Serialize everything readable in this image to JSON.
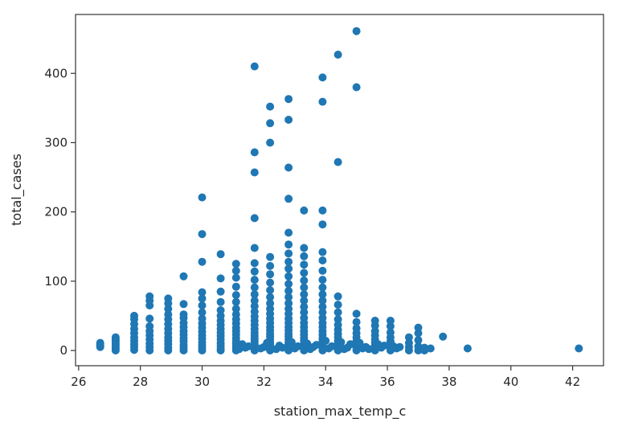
{
  "chart_data": {
    "type": "scatter",
    "xlabel": "station_max_temp_c",
    "ylabel": "total_cases",
    "xlim": [
      25.9,
      43.0
    ],
    "ylim": [
      -22,
      485
    ],
    "grid": false,
    "marker_color": "#1f77b4",
    "xticks": [
      26,
      28,
      30,
      32,
      34,
      36,
      38,
      40,
      42
    ],
    "xtick_labels": [
      "26",
      "28",
      "30",
      "32",
      "34",
      "36",
      "38",
      "40",
      "42"
    ],
    "yticks": [
      0,
      100,
      200,
      300,
      400
    ],
    "ytick_labels": [
      "0",
      "100",
      "200",
      "300",
      "400"
    ],
    "columns": [
      {
        "x": 26.7,
        "y": [
          5,
          7,
          9,
          11
        ]
      },
      {
        "x": 27.2,
        "y": [
          0,
          3,
          5,
          8,
          10,
          13,
          16,
          19
        ]
      },
      {
        "x": 27.8,
        "y": [
          1,
          5,
          9,
          14,
          19,
          25,
          31,
          38,
          45,
          50
        ]
      },
      {
        "x": 28.3,
        "y": [
          0,
          5,
          10,
          16,
          22,
          28,
          35,
          46,
          65,
          72,
          78
        ]
      },
      {
        "x": 28.9,
        "y": [
          0,
          4,
          9,
          14,
          19,
          25,
          31,
          38,
          45,
          52,
          60,
          68,
          75
        ]
      },
      {
        "x": 29.4,
        "y": [
          0,
          4,
          8,
          13,
          18,
          23,
          28,
          34,
          40,
          47,
          52,
          67,
          107
        ]
      },
      {
        "x": 30.0,
        "y": [
          0,
          4,
          8,
          12,
          17,
          22,
          27,
          33,
          39,
          46,
          55,
          65,
          75,
          84,
          128,
          168,
          221
        ]
      },
      {
        "x": 30.6,
        "y": [
          0,
          3,
          7,
          11,
          16,
          21,
          26,
          31,
          37,
          43,
          50,
          58,
          70,
          85,
          104,
          139
        ]
      },
      {
        "x": 31.1,
        "y": [
          0,
          3,
          6,
          10,
          14,
          18,
          23,
          28,
          33,
          39,
          45,
          52,
          60,
          70,
          80,
          92,
          105,
          115,
          125
        ]
      },
      {
        "x": 31.7,
        "y": [
          0,
          3,
          6,
          9,
          13,
          17,
          21,
          26,
          31,
          37,
          43,
          49,
          56,
          64,
          72,
          81,
          91,
          102,
          114,
          126,
          148,
          191,
          257,
          286,
          410
        ]
      },
      {
        "x": 32.2,
        "y": [
          0,
          3,
          6,
          9,
          12,
          16,
          20,
          24,
          29,
          34,
          40,
          46,
          53,
          60,
          68,
          77,
          87,
          98,
          110,
          122,
          135,
          300,
          328,
          352
        ]
      },
      {
        "x": 32.8,
        "y": [
          0,
          3,
          6,
          9,
          12,
          16,
          20,
          24,
          29,
          34,
          40,
          46,
          53,
          60,
          68,
          77,
          86,
          96,
          107,
          118,
          128,
          140,
          153,
          170,
          219,
          264,
          333,
          363
        ]
      },
      {
        "x": 33.3,
        "y": [
          0,
          3,
          6,
          10,
          14,
          18,
          23,
          28,
          34,
          40,
          47,
          55,
          63,
          72,
          81,
          91,
          101,
          112,
          124,
          136,
          148,
          202
        ]
      },
      {
        "x": 33.9,
        "y": [
          0,
          3,
          6,
          10,
          14,
          18,
          23,
          28,
          34,
          40,
          47,
          55,
          63,
          72,
          81,
          91,
          102,
          115,
          130,
          142,
          182,
          202,
          359,
          394
        ]
      },
      {
        "x": 34.4,
        "y": [
          0,
          3,
          6,
          10,
          14,
          19,
          24,
          30,
          37,
          45,
          55,
          66,
          78,
          272,
          427
        ]
      },
      {
        "x": 35.0,
        "y": [
          0,
          3,
          6,
          10,
          14,
          19,
          25,
          32,
          41,
          53,
          380,
          461
        ]
      },
      {
        "x": 35.6,
        "y": [
          0,
          3,
          7,
          11,
          16,
          22,
          28,
          36,
          43
        ]
      },
      {
        "x": 36.1,
        "y": [
          0,
          4,
          8,
          13,
          19,
          26,
          35,
          43
        ]
      },
      {
        "x": 36.7,
        "y": [
          0,
          5,
          11,
          19
        ]
      },
      {
        "x": 37.0,
        "y": [
          0,
          6,
          15,
          25,
          33
        ]
      },
      {
        "x": 37.2,
        "y": [
          0,
          4
        ]
      },
      {
        "x": 37.4,
        "y": [
          3
        ]
      },
      {
        "x": 37.8,
        "y": [
          20
        ]
      },
      {
        "x": 38.6,
        "y": [
          3
        ]
      },
      {
        "x": 42.2,
        "y": [
          3
        ]
      }
    ],
    "scatter_extra": {
      "x": [
        31.2,
        31.4,
        31.5,
        31.9,
        32.0,
        32.4,
        32.5,
        32.6,
        33.0,
        33.1,
        33.5,
        33.6,
        33.7,
        34.1,
        34.2,
        34.6,
        34.7,
        34.8,
        35.2,
        35.3,
        35.4,
        35.8,
        35.9,
        36.3,
        36.4,
        31.3,
        32.1,
        32.9,
        33.4,
        34.0,
        34.5,
        35.1,
        35.7,
        36.2
      ],
      "y": [
        2,
        4,
        6,
        3,
        5,
        2,
        7,
        4,
        3,
        6,
        2,
        5,
        8,
        3,
        6,
        2,
        4,
        9,
        3,
        5,
        2,
        4,
        7,
        3,
        5,
        9,
        11,
        12,
        10,
        14,
        12,
        11,
        9,
        6
      ]
    }
  }
}
